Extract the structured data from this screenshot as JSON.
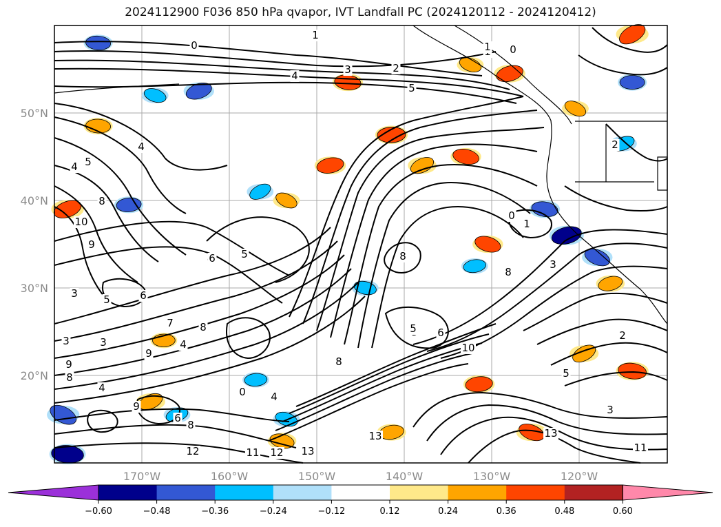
{
  "chart_data": {
    "type": "heatmap",
    "title": "2024112900 F036 850 hPa qvapor, IVT Landfall PC (2024120112 - 2024120412)",
    "xlabel": "",
    "ylabel": "",
    "x_ticks": [
      "170°W",
      "160°W",
      "150°W",
      "140°W",
      "130°W",
      "120°W"
    ],
    "y_ticks": [
      "20°N",
      "30°N",
      "40°N",
      "50°N"
    ],
    "xlim": [
      "180°",
      "110°W"
    ],
    "ylim": [
      "10°N",
      "60°N"
    ],
    "grid": true,
    "colorbar": {
      "orientation": "horizontal",
      "extend": "both",
      "ticks": [
        "−0.60",
        "−0.48",
        "−0.36",
        "−0.24",
        "−0.12",
        "0.12",
        "0.24",
        "0.36",
        "0.48",
        "0.60"
      ],
      "colors": [
        "#9b30d9",
        "#00008b",
        "#3358d4",
        "#00bfff",
        "#b0e0fa",
        "#ffffff",
        "#ffe98a",
        "#ffa500",
        "#ff4500",
        "#b22222",
        "#ff88aa"
      ]
    },
    "contour_labels": [
      {
        "text": "0"
      },
      {
        "text": "1"
      },
      {
        "text": "3"
      },
      {
        "text": "2"
      },
      {
        "text": "4"
      },
      {
        "text": "1"
      },
      {
        "text": "0"
      },
      {
        "text": "5"
      },
      {
        "text": "4"
      },
      {
        "text": "4"
      },
      {
        "text": "5"
      },
      {
        "text": "8"
      },
      {
        "text": "10"
      },
      {
        "text": "9"
      },
      {
        "text": "6"
      },
      {
        "text": "3"
      },
      {
        "text": "5"
      },
      {
        "text": "6"
      },
      {
        "text": "5"
      },
      {
        "text": "7"
      },
      {
        "text": "8"
      },
      {
        "text": "9"
      },
      {
        "text": "4"
      },
      {
        "text": "3"
      },
      {
        "text": "3"
      },
      {
        "text": "9"
      },
      {
        "text": "8"
      },
      {
        "text": "4"
      },
      {
        "text": "9"
      },
      {
        "text": "6"
      },
      {
        "text": "8"
      },
      {
        "text": "0"
      },
      {
        "text": "4"
      },
      {
        "text": "5"
      },
      {
        "text": "12"
      },
      {
        "text": "11"
      },
      {
        "text": "12"
      },
      {
        "text": "13"
      },
      {
        "text": "8"
      },
      {
        "text": "10"
      },
      {
        "text": "13"
      },
      {
        "text": "8"
      },
      {
        "text": "5"
      },
      {
        "text": "6"
      },
      {
        "text": "1"
      },
      {
        "text": "0"
      },
      {
        "text": "1"
      },
      {
        "text": "3"
      },
      {
        "text": "2"
      },
      {
        "text": "2"
      },
      {
        "text": "3"
      },
      {
        "text": "13"
      },
      {
        "text": "11"
      },
      {
        "text": "8"
      },
      {
        "text": "5"
      },
      {
        "text": "4"
      },
      {
        "text": "6"
      },
      {
        "text": "8"
      }
    ],
    "anomaly_patches": [
      {
        "lon": -114.0,
        "lat": 59.0,
        "value": 0.45
      },
      {
        "lon": -146.5,
        "lat": 53.5,
        "value": 0.4
      },
      {
        "lon": -128.0,
        "lat": 54.5,
        "value": 0.42
      },
      {
        "lon": -132.5,
        "lat": 55.5,
        "value": 0.3
      },
      {
        "lon": -141.5,
        "lat": 47.5,
        "value": 0.45
      },
      {
        "lon": -138.0,
        "lat": 44.0,
        "value": 0.35
      },
      {
        "lon": -133.0,
        "lat": 45.0,
        "value": 0.4
      },
      {
        "lon": -148.5,
        "lat": 44.0,
        "value": 0.42
      },
      {
        "lon": -153.5,
        "lat": 40.0,
        "value": 0.3
      },
      {
        "lon": -175.0,
        "lat": 48.5,
        "value": 0.36
      },
      {
        "lon": -178.5,
        "lat": 39.0,
        "value": 0.45
      },
      {
        "lon": -130.5,
        "lat": 35.0,
        "value": 0.4
      },
      {
        "lon": -131.5,
        "lat": 19.0,
        "value": 0.42
      },
      {
        "lon": -119.5,
        "lat": 22.5,
        "value": 0.36
      },
      {
        "lon": -114.0,
        "lat": 20.5,
        "value": 0.45
      },
      {
        "lon": -116.5,
        "lat": 30.5,
        "value": 0.35
      },
      {
        "lon": -125.5,
        "lat": 13.5,
        "value": 0.4
      },
      {
        "lon": -167.5,
        "lat": 24.0,
        "value": 0.3
      },
      {
        "lon": -169.0,
        "lat": 17.0,
        "value": 0.36
      },
      {
        "lon": -154.0,
        "lat": 12.5,
        "value": 0.35
      },
      {
        "lon": -141.5,
        "lat": 13.5,
        "value": 0.36
      },
      {
        "lon": -120.5,
        "lat": 50.5,
        "value": 0.3
      },
      {
        "lon": -175.0,
        "lat": 58.0,
        "value": -0.36
      },
      {
        "lon": -163.5,
        "lat": 52.5,
        "value": -0.4
      },
      {
        "lon": -168.5,
        "lat": 52.0,
        "value": -0.3
      },
      {
        "lon": -171.5,
        "lat": 39.5,
        "value": -0.36
      },
      {
        "lon": -156.5,
        "lat": 41.0,
        "value": -0.3
      },
      {
        "lon": -124.0,
        "lat": 39.0,
        "value": -0.4
      },
      {
        "lon": -121.5,
        "lat": 36.0,
        "value": -0.5
      },
      {
        "lon": -118.0,
        "lat": 33.5,
        "value": -0.4
      },
      {
        "lon": -114.0,
        "lat": 53.5,
        "value": -0.36
      },
      {
        "lon": -115.0,
        "lat": 46.5,
        "value": -0.3
      },
      {
        "lon": -144.5,
        "lat": 30.0,
        "value": -0.3
      },
      {
        "lon": -132.0,
        "lat": 32.5,
        "value": -0.3
      },
      {
        "lon": -179.0,
        "lat": 15.5,
        "value": -0.45
      },
      {
        "lon": -178.5,
        "lat": 11.0,
        "value": -0.55
      },
      {
        "lon": -166.0,
        "lat": 15.5,
        "value": -0.3
      },
      {
        "lon": -153.5,
        "lat": 15.0,
        "value": -0.3
      },
      {
        "lon": -157.0,
        "lat": 19.5,
        "value": -0.3
      }
    ]
  }
}
